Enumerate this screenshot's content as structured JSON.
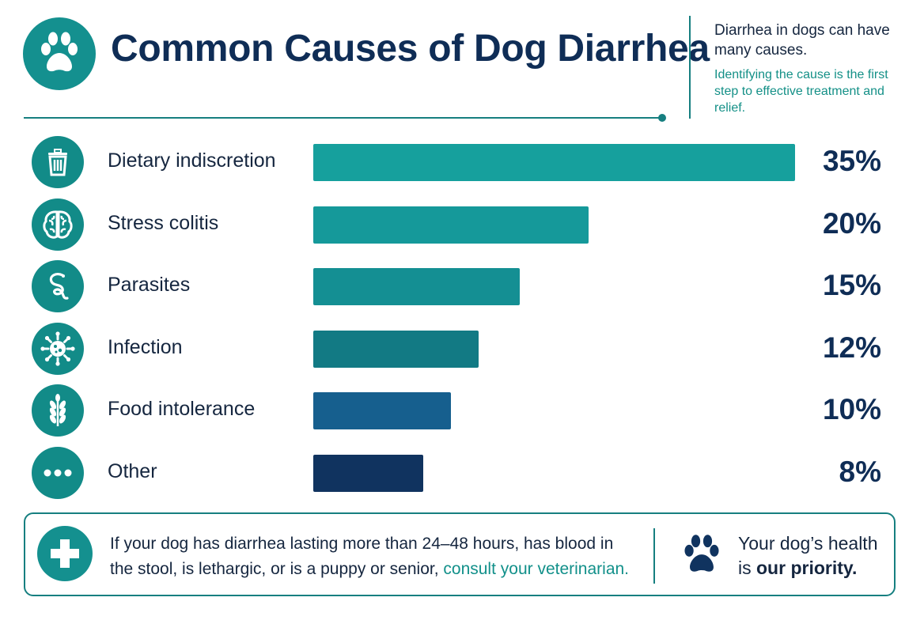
{
  "header": {
    "title": "Common Causes of Dog Diarrhea",
    "intro_line1": "Diarrhea in dogs can have many causes.",
    "intro_line2": "Identifying the cause is the first step to effective treatment and relief."
  },
  "chart_data": {
    "type": "bar",
    "orientation": "horizontal",
    "title": "Common Causes of Dog Diarrhea",
    "categories": [
      "Dietary indiscretion",
      "Stress colitis",
      "Parasites",
      "Infection",
      "Food intolerance",
      "Other"
    ],
    "values": [
      35,
      20,
      15,
      12,
      10,
      8
    ],
    "value_labels": [
      "35%",
      "20%",
      "15%",
      "12%",
      "10%",
      "8%"
    ],
    "unit": "%",
    "icons": [
      "trash-can-icon",
      "brain-icon",
      "worm-icon",
      "virus-icon",
      "wheat-icon",
      "ellipsis-icon"
    ],
    "colors": [
      "#16a09d",
      "#15999a",
      "#148f93",
      "#127a84",
      "#165f8e",
      "#10335f"
    ],
    "xlim": [
      0,
      35
    ],
    "grid": false,
    "legend": "none"
  },
  "footer": {
    "note_prefix": "If your dog has diarrhea lasting more than 24–48 hours, has blood in the stool, is lethargic, or is a puppy or senior, ",
    "note_cta": "consult your veterinarian.",
    "health_line1": "Your dog’s health",
    "health_line2_prefix": "is ",
    "health_line2_bold": "our priority."
  },
  "icons": {
    "logo": "paw-icon",
    "alert": "medical-cross-icon",
    "footer": "paw-icon"
  },
  "colors": {
    "accent": "#14908f",
    "title": "#0f2d56",
    "cta": "#12908a"
  }
}
